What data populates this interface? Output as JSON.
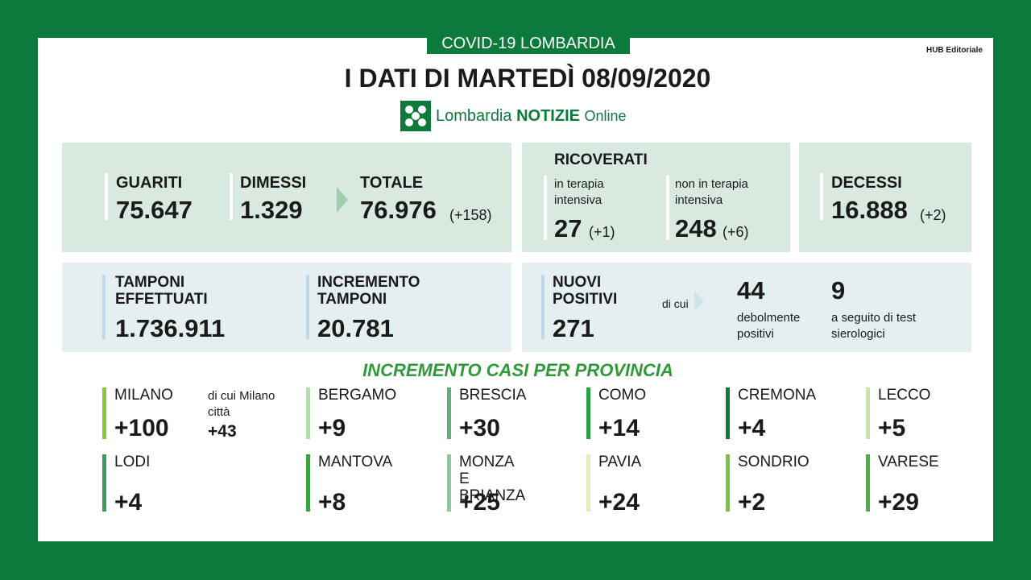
{
  "header": {
    "badge": "COVID-19 LOMBARDIA",
    "title": "I DATI DI MARTEDÌ 08/09/2020",
    "logo": {
      "part1": "Lombardia",
      "part2": "NOTIZIE",
      "part3": "Online"
    },
    "credit": "HUB Editoriale"
  },
  "summary": {
    "guariti": {
      "label": "GUARITI",
      "value": "75.647"
    },
    "dimessi": {
      "label": "DIMESSI",
      "value": "1.329"
    },
    "totale": {
      "label": "TOTALE",
      "value": "76.976",
      "delta": "(+158)"
    },
    "ricoverati": {
      "title": "RICOVERATI",
      "intensiva": {
        "label": "in terapia intensiva",
        "value": "27",
        "delta": "(+1)"
      },
      "non_intensiva": {
        "label": "non in terapia intensiva",
        "value": "248",
        "delta": "(+6)"
      }
    },
    "decessi": {
      "label": "DECESSI",
      "value": "16.888",
      "delta": "(+2)"
    },
    "tamponi": {
      "label": "TAMPONI EFFETTUATI",
      "value": "1.736.911"
    },
    "incremento": {
      "label": "INCREMENTO TAMPONI",
      "value": "20.781"
    },
    "positivi": {
      "label": "NUOVI POSITIVI",
      "value": "271",
      "di_cui": "di cui",
      "debolmente": {
        "value": "44",
        "label": "debolmente positivi"
      },
      "sierologici": {
        "value": "9",
        "label": "a seguito di test sierologici"
      }
    }
  },
  "provinces": {
    "title": "INCREMENTO CASI PER PROVINCIA",
    "milano_note": {
      "label": "di cui Milano città",
      "value": "+43"
    },
    "items": [
      {
        "name": "MILANO",
        "value": "+100",
        "color": "#8cc63f"
      },
      {
        "name": "BERGAMO",
        "value": "+9",
        "color": "#b5d9b0"
      },
      {
        "name": "BRESCIA",
        "value": "+30",
        "color": "#5fae7b"
      },
      {
        "name": "COMO",
        "value": "+14",
        "color": "#27a043"
      },
      {
        "name": "CREMONA",
        "value": "+4",
        "color": "#0d7a38"
      },
      {
        "name": "LECCO",
        "value": "+5",
        "color": "#c7e3a5"
      },
      {
        "name": "LODI",
        "value": "+4",
        "color": "#3f9a5e"
      },
      {
        "name": "MANTOVA",
        "value": "+8",
        "color": "#3aa141"
      },
      {
        "name": "MONZA E BRIANZA",
        "value": "+25",
        "color": "#8cc7a0"
      },
      {
        "name": "PAVIA",
        "value": "+24",
        "color": "#e0efc2"
      },
      {
        "name": "SONDRIO",
        "value": "+2",
        "color": "#7cc242"
      },
      {
        "name": "VARESE",
        "value": "+29",
        "color": "#4caf48"
      }
    ]
  }
}
